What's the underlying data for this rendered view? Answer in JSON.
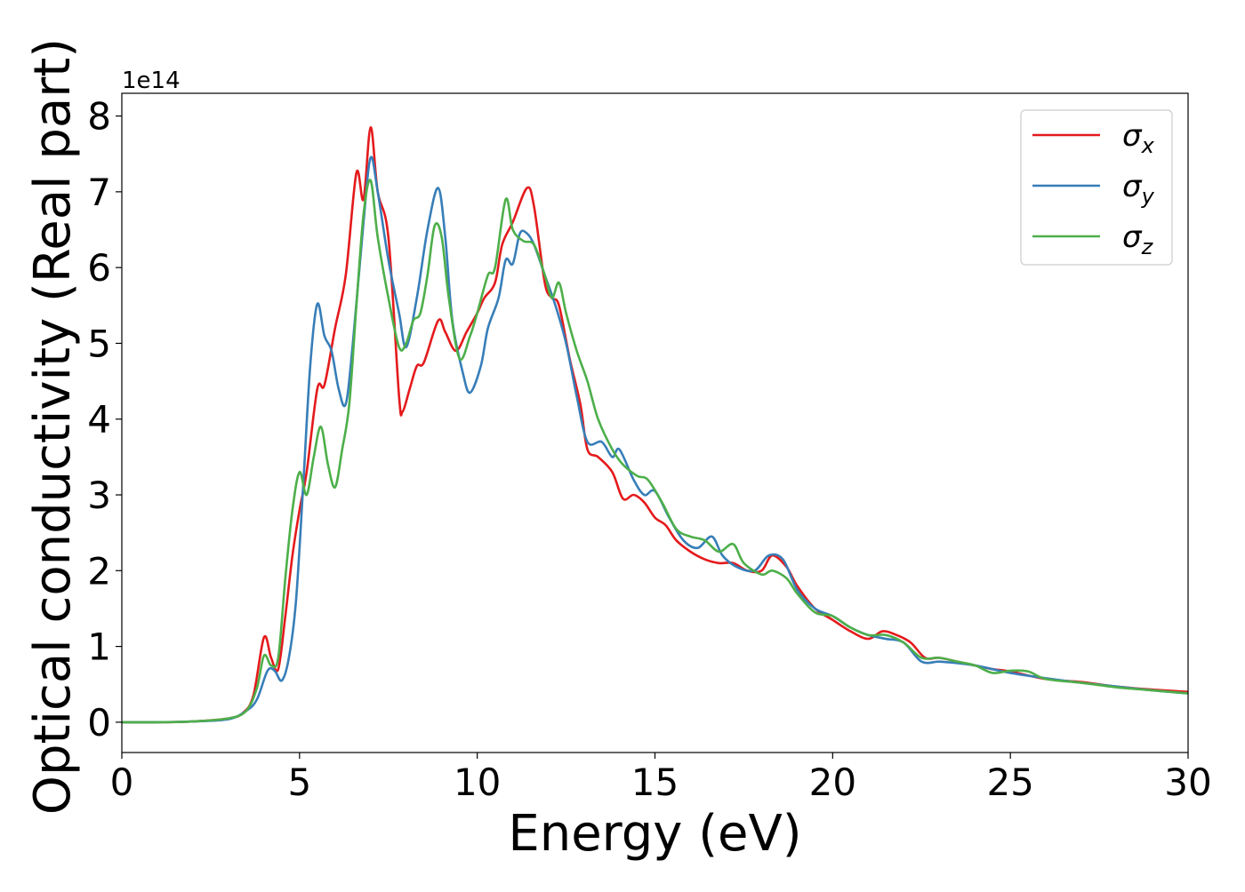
{
  "chart_data": {
    "type": "line",
    "xlabel": "Energy (eV)",
    "ylabel": "Optical conductivity (Real part)",
    "y_offset_label": "1e14",
    "xlim": [
      0,
      30
    ],
    "ylim": [
      -0.4,
      8.3
    ],
    "x_ticks": [
      0,
      5,
      10,
      15,
      20,
      25,
      30
    ],
    "x_tick_labels": [
      "0",
      "5",
      "10",
      "15",
      "20",
      "25",
      "30"
    ],
    "y_ticks": [
      0,
      1,
      2,
      3,
      4,
      5,
      6,
      7,
      8
    ],
    "y_tick_labels": [
      "0",
      "1",
      "2",
      "3",
      "4",
      "5",
      "6",
      "7",
      "8"
    ],
    "grid": false,
    "legend_position": "top-right",
    "series": [
      {
        "name": "σx",
        "symbol": "σ",
        "subscript": "x",
        "color": "#e41a1c",
        "points": [
          [
            0,
            0
          ],
          [
            1,
            0
          ],
          [
            2,
            0.01
          ],
          [
            3,
            0.05
          ],
          [
            3.4,
            0.12
          ],
          [
            3.7,
            0.35
          ],
          [
            4.0,
            1.12
          ],
          [
            4.2,
            0.85
          ],
          [
            4.4,
            0.7
          ],
          [
            4.6,
            1.4
          ],
          [
            4.8,
            2.2
          ],
          [
            5.0,
            2.8
          ],
          [
            5.2,
            3.3
          ],
          [
            5.5,
            4.4
          ],
          [
            5.7,
            4.45
          ],
          [
            6.0,
            5.2
          ],
          [
            6.3,
            5.9
          ],
          [
            6.6,
            7.25
          ],
          [
            6.8,
            6.9
          ],
          [
            7.0,
            7.85
          ],
          [
            7.2,
            7.0
          ],
          [
            7.5,
            6.4
          ],
          [
            7.8,
            4.3
          ],
          [
            7.9,
            4.1
          ],
          [
            8.1,
            4.4
          ],
          [
            8.3,
            4.7
          ],
          [
            8.5,
            4.75
          ],
          [
            8.9,
            5.3
          ],
          [
            9.1,
            5.15
          ],
          [
            9.4,
            4.9
          ],
          [
            9.7,
            5.15
          ],
          [
            10.0,
            5.4
          ],
          [
            10.2,
            5.6
          ],
          [
            10.5,
            5.8
          ],
          [
            10.7,
            6.3
          ],
          [
            11.0,
            6.6
          ],
          [
            11.4,
            7.05
          ],
          [
            11.6,
            6.8
          ],
          [
            11.9,
            5.8
          ],
          [
            12.1,
            5.6
          ],
          [
            12.3,
            5.5
          ],
          [
            12.6,
            4.8
          ],
          [
            12.9,
            4.2
          ],
          [
            13.1,
            3.6
          ],
          [
            13.4,
            3.5
          ],
          [
            13.8,
            3.3
          ],
          [
            14.1,
            2.95
          ],
          [
            14.4,
            3.0
          ],
          [
            14.7,
            2.9
          ],
          [
            15.0,
            2.7
          ],
          [
            15.3,
            2.6
          ],
          [
            15.6,
            2.4
          ],
          [
            16.0,
            2.25
          ],
          [
            16.4,
            2.15
          ],
          [
            16.8,
            2.1
          ],
          [
            17.2,
            2.1
          ],
          [
            17.6,
            2.0
          ],
          [
            18.0,
            2.0
          ],
          [
            18.3,
            2.2
          ],
          [
            18.7,
            2.05
          ],
          [
            19.0,
            1.8
          ],
          [
            19.5,
            1.5
          ],
          [
            20.0,
            1.35
          ],
          [
            20.5,
            1.2
          ],
          [
            21.0,
            1.1
          ],
          [
            21.4,
            1.2
          ],
          [
            21.8,
            1.15
          ],
          [
            22.2,
            1.05
          ],
          [
            22.6,
            0.85
          ],
          [
            23.0,
            0.85
          ],
          [
            23.5,
            0.8
          ],
          [
            24.0,
            0.75
          ],
          [
            24.5,
            0.7
          ],
          [
            25.0,
            0.67
          ],
          [
            26.0,
            0.57
          ],
          [
            27.0,
            0.53
          ],
          [
            28.0,
            0.47
          ],
          [
            29.0,
            0.43
          ],
          [
            30.0,
            0.4
          ]
        ]
      },
      {
        "name": "σy",
        "symbol": "σ",
        "subscript": "y",
        "color": "#377eb8",
        "points": [
          [
            0,
            0
          ],
          [
            1,
            0
          ],
          [
            2,
            0.01
          ],
          [
            3,
            0.04
          ],
          [
            3.5,
            0.15
          ],
          [
            3.8,
            0.3
          ],
          [
            4.1,
            0.68
          ],
          [
            4.3,
            0.68
          ],
          [
            4.5,
            0.55
          ],
          [
            4.7,
            0.85
          ],
          [
            4.9,
            1.6
          ],
          [
            5.1,
            3.1
          ],
          [
            5.3,
            4.7
          ],
          [
            5.5,
            5.52
          ],
          [
            5.7,
            5.1
          ],
          [
            5.9,
            4.9
          ],
          [
            6.1,
            4.4
          ],
          [
            6.3,
            4.2
          ],
          [
            6.5,
            5.0
          ],
          [
            6.8,
            6.6
          ],
          [
            7.0,
            7.45
          ],
          [
            7.2,
            7.0
          ],
          [
            7.5,
            6.1
          ],
          [
            7.8,
            5.4
          ],
          [
            8.0,
            4.95
          ],
          [
            8.3,
            5.6
          ],
          [
            8.6,
            6.5
          ],
          [
            8.9,
            7.05
          ],
          [
            9.1,
            6.4
          ],
          [
            9.3,
            5.3
          ],
          [
            9.6,
            4.6
          ],
          [
            9.8,
            4.35
          ],
          [
            10.1,
            4.7
          ],
          [
            10.3,
            5.2
          ],
          [
            10.6,
            5.6
          ],
          [
            10.8,
            6.1
          ],
          [
            11.0,
            6.05
          ],
          [
            11.2,
            6.45
          ],
          [
            11.4,
            6.45
          ],
          [
            11.6,
            6.3
          ],
          [
            11.9,
            5.9
          ],
          [
            12.2,
            5.5
          ],
          [
            12.5,
            5.0
          ],
          [
            12.8,
            4.3
          ],
          [
            13.1,
            3.7
          ],
          [
            13.5,
            3.7
          ],
          [
            13.8,
            3.5
          ],
          [
            14.0,
            3.6
          ],
          [
            14.4,
            3.2
          ],
          [
            14.7,
            3.0
          ],
          [
            15.0,
            3.05
          ],
          [
            15.4,
            2.7
          ],
          [
            15.8,
            2.4
          ],
          [
            16.2,
            2.3
          ],
          [
            16.6,
            2.45
          ],
          [
            16.9,
            2.2
          ],
          [
            17.3,
            2.05
          ],
          [
            17.8,
            2.0
          ],
          [
            18.2,
            2.2
          ],
          [
            18.6,
            2.15
          ],
          [
            19.0,
            1.75
          ],
          [
            19.5,
            1.5
          ],
          [
            20.0,
            1.4
          ],
          [
            20.5,
            1.25
          ],
          [
            21.0,
            1.15
          ],
          [
            21.5,
            1.1
          ],
          [
            22.0,
            1.05
          ],
          [
            22.5,
            0.8
          ],
          [
            23.0,
            0.8
          ],
          [
            23.5,
            0.78
          ],
          [
            24.0,
            0.75
          ],
          [
            24.5,
            0.7
          ],
          [
            25.0,
            0.65
          ],
          [
            26.0,
            0.58
          ],
          [
            27.0,
            0.52
          ],
          [
            28.0,
            0.47
          ],
          [
            29.0,
            0.42
          ],
          [
            30.0,
            0.38
          ]
        ]
      },
      {
        "name": "σz",
        "symbol": "σ",
        "subscript": "z",
        "color": "#4daf4a",
        "points": [
          [
            0,
            0
          ],
          [
            1,
            0
          ],
          [
            2,
            0.01
          ],
          [
            3,
            0.05
          ],
          [
            3.5,
            0.15
          ],
          [
            3.8,
            0.45
          ],
          [
            4.0,
            0.88
          ],
          [
            4.2,
            0.75
          ],
          [
            4.4,
            0.85
          ],
          [
            4.6,
            1.9
          ],
          [
            4.8,
            2.8
          ],
          [
            5.0,
            3.3
          ],
          [
            5.2,
            3.0
          ],
          [
            5.4,
            3.5
          ],
          [
            5.6,
            3.9
          ],
          [
            5.8,
            3.4
          ],
          [
            6.0,
            3.1
          ],
          [
            6.2,
            3.6
          ],
          [
            6.4,
            4.2
          ],
          [
            6.6,
            5.5
          ],
          [
            6.8,
            6.7
          ],
          [
            7.0,
            7.15
          ],
          [
            7.2,
            6.4
          ],
          [
            7.5,
            5.6
          ],
          [
            7.8,
            4.95
          ],
          [
            8.0,
            5.0
          ],
          [
            8.2,
            5.3
          ],
          [
            8.4,
            5.4
          ],
          [
            8.6,
            5.9
          ],
          [
            8.8,
            6.55
          ],
          [
            9.0,
            6.4
          ],
          [
            9.2,
            5.6
          ],
          [
            9.5,
            4.8
          ],
          [
            9.8,
            5.1
          ],
          [
            10.0,
            5.4
          ],
          [
            10.3,
            5.9
          ],
          [
            10.5,
            6.0
          ],
          [
            10.8,
            6.9
          ],
          [
            11.0,
            6.5
          ],
          [
            11.3,
            6.35
          ],
          [
            11.6,
            6.3
          ],
          [
            11.9,
            5.9
          ],
          [
            12.1,
            5.6
          ],
          [
            12.3,
            5.8
          ],
          [
            12.5,
            5.4
          ],
          [
            12.8,
            4.9
          ],
          [
            13.1,
            4.5
          ],
          [
            13.4,
            4.0
          ],
          [
            13.8,
            3.6
          ],
          [
            14.1,
            3.4
          ],
          [
            14.5,
            3.25
          ],
          [
            14.8,
            3.2
          ],
          [
            15.2,
            2.9
          ],
          [
            15.6,
            2.55
          ],
          [
            16.0,
            2.45
          ],
          [
            16.4,
            2.4
          ],
          [
            16.8,
            2.25
          ],
          [
            17.2,
            2.35
          ],
          [
            17.5,
            2.1
          ],
          [
            18.0,
            1.95
          ],
          [
            18.3,
            2.0
          ],
          [
            18.7,
            1.9
          ],
          [
            19.0,
            1.7
          ],
          [
            19.5,
            1.45
          ],
          [
            20.0,
            1.4
          ],
          [
            20.5,
            1.25
          ],
          [
            21.0,
            1.15
          ],
          [
            21.5,
            1.15
          ],
          [
            22.0,
            1.05
          ],
          [
            22.5,
            0.85
          ],
          [
            23.0,
            0.85
          ],
          [
            23.5,
            0.8
          ],
          [
            24.0,
            0.75
          ],
          [
            24.5,
            0.65
          ],
          [
            25.0,
            0.68
          ],
          [
            25.5,
            0.67
          ],
          [
            26.0,
            0.57
          ],
          [
            27.0,
            0.52
          ],
          [
            28.0,
            0.46
          ],
          [
            29.0,
            0.42
          ],
          [
            30.0,
            0.38
          ]
        ]
      }
    ]
  }
}
